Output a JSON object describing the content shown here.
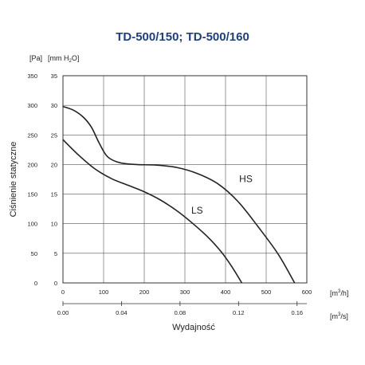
{
  "chart_data": {
    "type": "line",
    "title": "TD-500/150; TD-500/160",
    "ylabel": "Ciśnienie statyczne",
    "xlabel": "Wydajność",
    "y_unit_pa": "[Pa]",
    "y_unit_mm": "[mm H",
    "y_unit_mm_sub": "2",
    "y_unit_mm_end": "O]",
    "x_unit_main": "[m",
    "x_unit_main_sup": "3",
    "x_unit_main_end": "/h]",
    "x_unit_secondary": "[m",
    "x_unit_secondary_sup": "3",
    "x_unit_secondary_end": "/s]",
    "x_range": [
      0,
      600
    ],
    "y_range": [
      0,
      350
    ],
    "x_ticks": [
      "0",
      "100",
      "200",
      "300",
      "400",
      "500",
      "600"
    ],
    "y_ticks_pa": [
      "0",
      "50",
      "100",
      "150",
      "200",
      "250",
      "300",
      "350"
    ],
    "y_ticks_mm": [
      "0",
      "5",
      "10",
      "15",
      "20",
      "25",
      "30",
      "35"
    ],
    "x2_ticks": [
      {
        "value": 0,
        "label": "0.00"
      },
      {
        "value": 144,
        "label": "0.04"
      },
      {
        "value": 288,
        "label": "0.08"
      },
      {
        "value": 432,
        "label": "0.12"
      },
      {
        "value": 576,
        "label": "0.16"
      }
    ],
    "grid": true,
    "series": [
      {
        "name": "HS",
        "label_pos": {
          "x": 450,
          "y": 170
        },
        "x": [
          0,
          25,
          50,
          70,
          90,
          110,
          140,
          180,
          230,
          280,
          330,
          380,
          430,
          480,
          530,
          570
        ],
        "y": [
          298,
          292,
          280,
          263,
          235,
          213,
          203,
          200,
          199,
          195,
          185,
          168,
          138,
          95,
          48,
          0
        ]
      },
      {
        "name": "LS",
        "label_pos": {
          "x": 330,
          "y": 117
        },
        "x": [
          0,
          40,
          80,
          120,
          160,
          200,
          240,
          280,
          320,
          360,
          390,
          415,
          440
        ],
        "y": [
          242,
          215,
          192,
          176,
          165,
          154,
          140,
          122,
          100,
          75,
          52,
          28,
          0
        ]
      }
    ]
  }
}
